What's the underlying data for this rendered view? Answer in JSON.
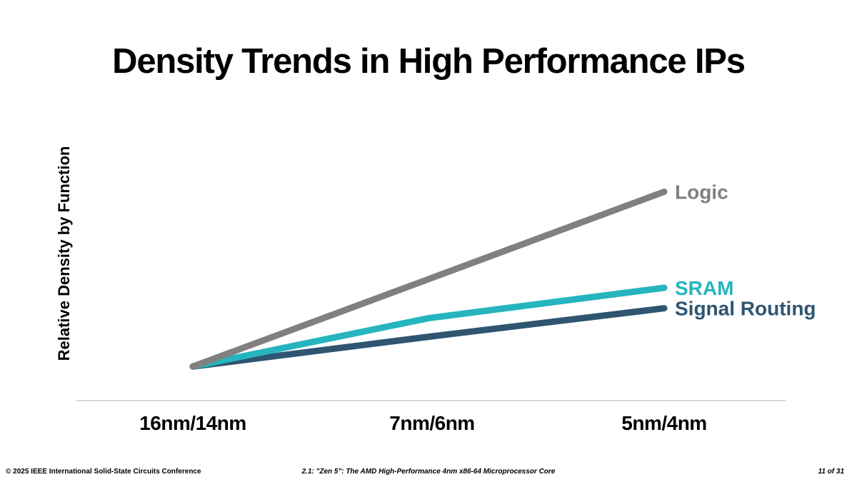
{
  "chart_data": {
    "type": "line",
    "title": "Density Trends in High Performance IPs",
    "xlabel": "",
    "ylabel": "Relative Density by Function",
    "categories": [
      "16nm/14nm",
      "7nm/6nm",
      "5nm/4nm"
    ],
    "ylim": [
      -0.55,
      3.61
    ],
    "grid": false,
    "series": [
      {
        "name": "Logic",
        "values": [
          0,
          1.41,
          2.82
        ],
        "color": "#808080"
      },
      {
        "name": "SRAM",
        "values": [
          0,
          0.78,
          1.27
        ],
        "color": "#26B5BE"
      },
      {
        "name": "Signal Routing",
        "values": [
          0,
          0.48,
          0.94
        ],
        "color": "#2F5570"
      }
    ]
  },
  "footer": {
    "left": "© 2025 IEEE International Solid-State Circuits Conference",
    "center": "2.1: \"Zen 5\": The AMD High-Performance 4nm x86-64 Microprocessor Core",
    "right": "11 of 31"
  }
}
